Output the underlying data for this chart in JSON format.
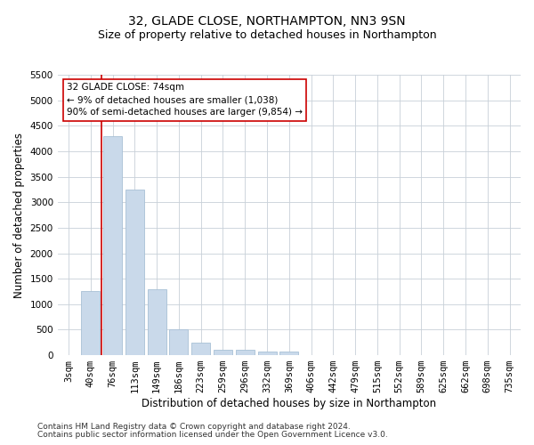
{
  "title": "32, GLADE CLOSE, NORTHAMPTON, NN3 9SN",
  "subtitle": "Size of property relative to detached houses in Northampton",
  "xlabel": "Distribution of detached houses by size in Northampton",
  "ylabel": "Number of detached properties",
  "categories": [
    "3sqm",
    "40sqm",
    "76sqm",
    "113sqm",
    "149sqm",
    "186sqm",
    "223sqm",
    "259sqm",
    "296sqm",
    "332sqm",
    "369sqm",
    "406sqm",
    "442sqm",
    "479sqm",
    "515sqm",
    "552sqm",
    "589sqm",
    "625sqm",
    "662sqm",
    "698sqm",
    "735sqm"
  ],
  "values": [
    0,
    1250,
    4300,
    3250,
    1300,
    500,
    250,
    100,
    100,
    75,
    75,
    0,
    0,
    0,
    0,
    0,
    0,
    0,
    0,
    0,
    0
  ],
  "bar_color": "#c9d9ea",
  "bar_edge_color": "#a8c0d6",
  "vline_color": "#cc0000",
  "annotation_text": "32 GLADE CLOSE: 74sqm\n← 9% of detached houses are smaller (1,038)\n90% of semi-detached houses are larger (9,854) →",
  "annotation_box_color": "#ffffff",
  "annotation_box_edge_color": "#cc0000",
  "ylim": [
    0,
    5500
  ],
  "yticks": [
    0,
    500,
    1000,
    1500,
    2000,
    2500,
    3000,
    3500,
    4000,
    4500,
    5000,
    5500
  ],
  "footnote1": "Contains HM Land Registry data © Crown copyright and database right 2024.",
  "footnote2": "Contains public sector information licensed under the Open Government Licence v3.0.",
  "bg_color": "#ffffff",
  "grid_color": "#c8d0d8",
  "title_fontsize": 10,
  "subtitle_fontsize": 9,
  "axis_label_fontsize": 8.5,
  "tick_fontsize": 7.5,
  "annotation_fontsize": 7.5,
  "footnote_fontsize": 6.5
}
